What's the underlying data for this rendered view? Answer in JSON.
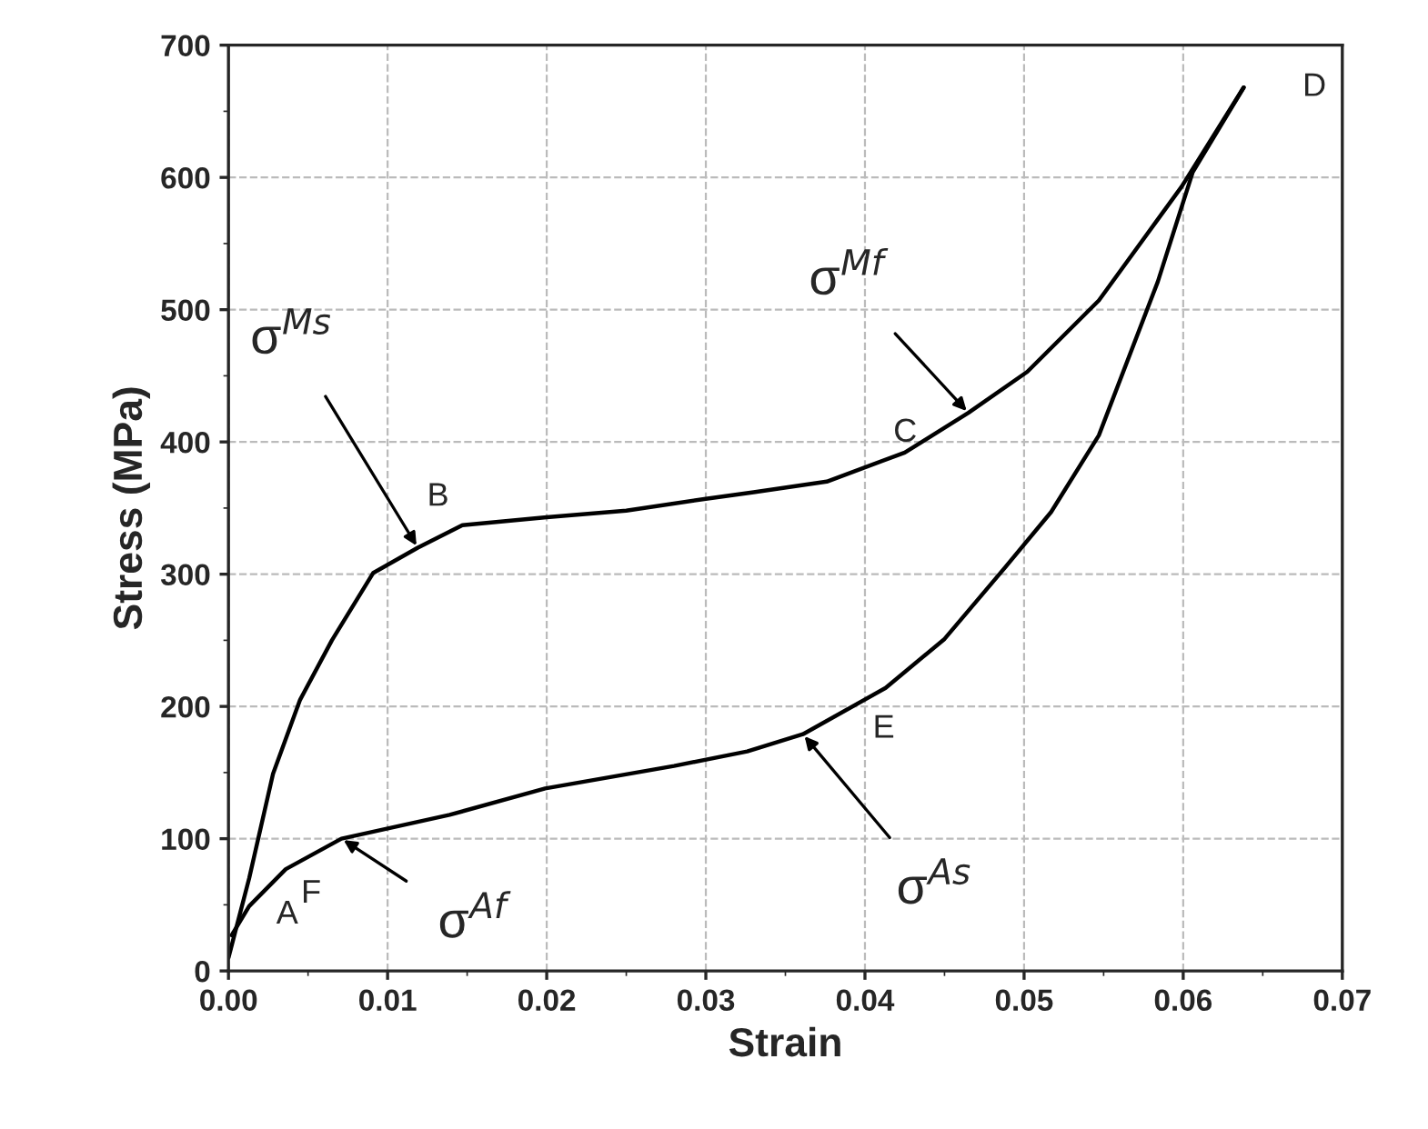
{
  "chart_data": {
    "type": "line",
    "xlabel": "Strain",
    "ylabel": "Stress (MPa)",
    "series": [
      {
        "color": "#000000",
        "x": [
          0,
          0.0013,
          0.0028,
          0.0045,
          0.0065,
          0.0091,
          0.0119,
          0.0147,
          0.02,
          0.025,
          0.03,
          0.033,
          0.0376,
          0.0425,
          0.0465,
          0.0502,
          0.0547,
          0.0599,
          0.0638
        ],
        "values": [
          10,
          70,
          149,
          205,
          250,
          301,
          320,
          337,
          343,
          348,
          357,
          362,
          370,
          392,
          422,
          453,
          507,
          593,
          668
        ]
      },
      {
        "color": "#000000",
        "x": [
          0.0638,
          0.0606,
          0.0584,
          0.0547,
          0.0517,
          0.0488,
          0.045,
          0.0413,
          0.0361,
          0.0326,
          0.028,
          0.0199,
          0.0139,
          0.0071,
          0.0036,
          0.0013,
          0.0002
        ],
        "values": [
          668,
          604,
          521,
          405,
          347,
          305,
          251,
          214,
          179,
          166,
          155,
          138,
          118,
          100,
          77,
          49,
          27
        ]
      }
    ],
    "xlim": [
      0,
      0.07
    ],
    "ylim": [
      0,
      700
    ],
    "xticks": [
      {
        "value": 0,
        "label": "0.00"
      },
      {
        "value": 0.01,
        "label": "0.01"
      },
      {
        "value": 0.02,
        "label": "0.02"
      },
      {
        "value": 0.03,
        "label": "0.03"
      },
      {
        "value": 0.04,
        "label": "0.04"
      },
      {
        "value": 0.05,
        "label": "0.05"
      },
      {
        "value": 0.06,
        "label": "0.06"
      },
      {
        "value": 0.07,
        "label": "0.07"
      }
    ],
    "yticks": [
      0,
      100,
      200,
      300,
      400,
      500,
      600,
      700
    ],
    "grid": true,
    "marker": "none",
    "line_style": "solid",
    "annotations": [
      {
        "text": "A",
        "x": 0.0002,
        "y": 27
      },
      {
        "text": "B",
        "x": 0.0119,
        "y": 320
      },
      {
        "text": "C",
        "x": 0.0465,
        "y": 422
      },
      {
        "text": "D",
        "x": 0.0638,
        "y": 668
      },
      {
        "text": "E",
        "x": 0.0361,
        "y": 179
      },
      {
        "text": "F",
        "x": 0.0071,
        "y": 100
      },
      {
        "text": "σ$^{Ms}$",
        "x": 0.0119,
        "y": 320
      },
      {
        "text": "σ$^{Mf}$",
        "x": 0.0465,
        "y": 422
      },
      {
        "text": "σ$^{As}$",
        "x": 0.0361,
        "y": 179
      },
      {
        "text": "σ$^{Af}$",
        "x": 0.0071,
        "y": 100
      }
    ]
  }
}
